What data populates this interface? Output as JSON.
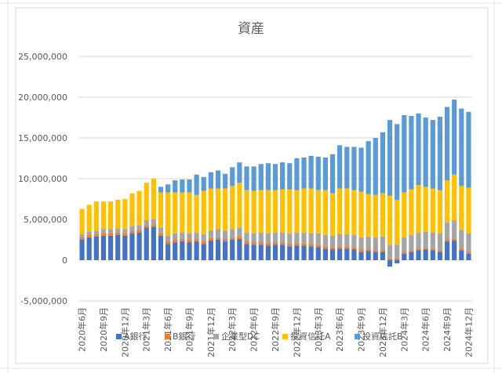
{
  "chart_data": {
    "type": "stacked-bar",
    "title": "資産",
    "categories": [
      "2020年6月",
      null,
      null,
      "2020年9月",
      null,
      null,
      "2020年12月",
      null,
      null,
      "2021年3月",
      null,
      null,
      "2021年6月",
      null,
      null,
      "2021年9月",
      null,
      null,
      "2021年12月",
      null,
      null,
      "2022年3月",
      null,
      null,
      "2022年6月",
      null,
      null,
      "2022年9月",
      null,
      null,
      "2022年12月",
      null,
      null,
      "2023年3月",
      null,
      null,
      "2023年6月",
      null,
      null,
      "2023年9月",
      null,
      null,
      "2023年12月",
      null,
      null,
      "2024年3月",
      null,
      null,
      "2024年6月",
      null,
      null,
      "2024年9月",
      null,
      null,
      "2024年12月"
    ],
    "series": [
      {
        "name": "A銀行",
        "color": "#4472c4",
        "values": [
          2500000,
          2800000,
          2900000,
          3000000,
          3000000,
          3100000,
          3000000,
          3300000,
          3400000,
          4000000,
          4100000,
          3000000,
          2000000,
          2200000,
          2300000,
          2200000,
          2300000,
          2000000,
          2400000,
          2500000,
          2300000,
          2500000,
          2600000,
          2000000,
          1900000,
          1900000,
          1800000,
          1900000,
          1900000,
          1700000,
          1800000,
          1800000,
          1700000,
          1600000,
          1400000,
          1300000,
          1400000,
          1400000,
          1300000,
          1000000,
          1100000,
          1000000,
          1000000,
          -800000,
          -400000,
          800000,
          1000000,
          1200000,
          1300000,
          1200000,
          1000000,
          2300000,
          2400000,
          1200000,
          800000
        ]
      },
      {
        "name": "B銀行",
        "color": "#ed7d31",
        "values": [
          300000,
          300000,
          300000,
          300000,
          300000,
          300000,
          300000,
          300000,
          300000,
          300000,
          300000,
          300000,
          300000,
          300000,
          300000,
          300000,
          300000,
          300000,
          300000,
          300000,
          300000,
          300000,
          300000,
          300000,
          300000,
          300000,
          300000,
          300000,
          300000,
          300000,
          300000,
          300000,
          300000,
          300000,
          300000,
          300000,
          300000,
          300000,
          300000,
          300000,
          200000,
          200000,
          200000,
          200000,
          200000,
          200000,
          200000,
          200000,
          200000,
          200000,
          200000,
          200000,
          200000,
          200000,
          200000
        ]
      },
      {
        "name": "企業型DC",
        "color": "#a5a5a5",
        "values": [
          400000,
          400000,
          400000,
          500000,
          500000,
          500000,
          500000,
          600000,
          600000,
          600000,
          600000,
          700000,
          700000,
          800000,
          800000,
          800000,
          800000,
          900000,
          900000,
          1000000,
          1000000,
          1000000,
          1100000,
          1100000,
          1100000,
          1200000,
          1200000,
          1200000,
          1200000,
          1300000,
          1300000,
          1300000,
          1300000,
          1400000,
          1400000,
          1400000,
          1500000,
          1500000,
          1500000,
          1500000,
          1600000,
          1600000,
          1700000,
          1700000,
          1700000,
          1800000,
          1900000,
          2000000,
          2000000,
          2000000,
          2100000,
          2100000,
          2300000,
          2300000,
          2300000
        ]
      },
      {
        "name": "投資信託A",
        "color": "#ffc000",
        "values": [
          3100000,
          3300000,
          3600000,
          3400000,
          3400000,
          3500000,
          3700000,
          4000000,
          4200000,
          4600000,
          5000000,
          4300000,
          5300000,
          5000000,
          4900000,
          5000000,
          4600000,
          5300000,
          5200000,
          5000000,
          5200000,
          5300000,
          5500000,
          5200000,
          5200000,
          5200000,
          5300000,
          5200000,
          5300000,
          5400000,
          5200000,
          5400000,
          5500000,
          5300000,
          5500000,
          5200000,
          5600000,
          5600000,
          5500000,
          5600000,
          5200000,
          5200000,
          5300000,
          6000000,
          5500000,
          5500000,
          5600000,
          5800000,
          5500000,
          5400000,
          5300000,
          5200000,
          5600000,
          5400000,
          5600000
        ]
      },
      {
        "name": "投資信託B",
        "color": "#5b9bd5",
        "values": [
          0,
          0,
          0,
          0,
          0,
          0,
          0,
          0,
          0,
          0,
          0,
          700000,
          1000000,
          1500000,
          1600000,
          1600000,
          2500000,
          1700000,
          2000000,
          2200000,
          1800000,
          2300000,
          2500000,
          2900000,
          3000000,
          3200000,
          3300000,
          3200000,
          3300000,
          3200000,
          3900000,
          3800000,
          4000000,
          4100000,
          4000000,
          4800000,
          5300000,
          5100000,
          5300000,
          5400000,
          6500000,
          7000000,
          7500000,
          9300000,
          9300000,
          9500000,
          9000000,
          8800000,
          8500000,
          8400000,
          9000000,
          9000000,
          9200000,
          9500000,
          9300000
        ]
      }
    ],
    "ylim": [
      -5000000,
      25000000
    ],
    "yticks": [
      {
        "value": -5000000,
        "label": "-5,000,000"
      },
      0,
      {
        "value": 5000000,
        "label": "5,000,000"
      },
      {
        "value": 10000000,
        "label": "10,000,000"
      },
      {
        "value": 15000000,
        "label": "15,000,000"
      },
      {
        "value": 20000000,
        "label": "20,000,000"
      },
      {
        "value": 25000000,
        "label": "25,000,000"
      }
    ],
    "grid": true,
    "legend": "bottom"
  }
}
